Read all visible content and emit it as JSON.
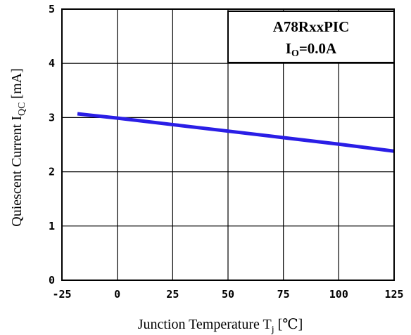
{
  "chart_data": {
    "type": "line",
    "xlabel": "Junction Temperature T",
    "xlabel_sub": "j",
    "xlabel_unit": " [℃]",
    "ylabel": "Quiescent Current I",
    "ylabel_sub": "QC",
    "ylabel_unit": " [mA]",
    "xlim": [
      -25,
      125
    ],
    "ylim": [
      0,
      5
    ],
    "xticks": [
      -25,
      0,
      25,
      50,
      75,
      100,
      125
    ],
    "yticks": [
      0,
      1,
      2,
      3,
      4,
      5
    ],
    "grid": true,
    "legend": {
      "position": "top-right",
      "line1": "A78RxxPIC",
      "line2_main": "I",
      "line2_sub": "O",
      "line2_rest": "=0.0A"
    },
    "series": [
      {
        "color": "#2a1ee6",
        "x": [
          -18,
          0,
          25,
          50,
          75,
          100,
          125
        ],
        "y": [
          3.07,
          2.99,
          2.87,
          2.75,
          2.63,
          2.51,
          2.38
        ]
      }
    ]
  }
}
